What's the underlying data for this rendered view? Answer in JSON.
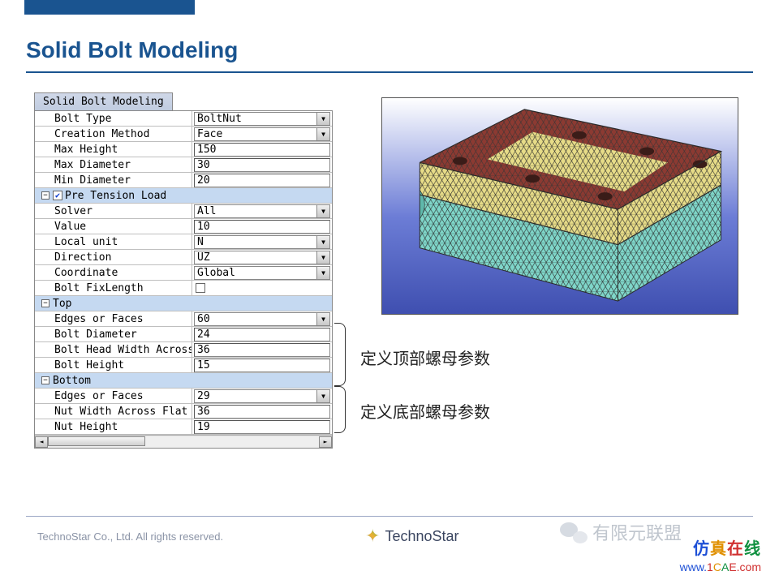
{
  "accent_color": "#1a5490",
  "page_title": "Solid Bolt Modeling",
  "panel_tab": "Solid Bolt Modeling",
  "rows": [
    {
      "label": "Bolt Type",
      "value": "BoltNut",
      "type": "dropdown"
    },
    {
      "label": "Creation Method",
      "value": "Face",
      "type": "dropdown"
    },
    {
      "label": "Max Height",
      "value": "150",
      "type": "text"
    },
    {
      "label": "Max Diameter",
      "value": "30",
      "type": "text"
    },
    {
      "label": "Min Diameter",
      "value": "20",
      "type": "text"
    }
  ],
  "pretension_label": "Pre Tension Load",
  "pretension_checked": true,
  "pretension_rows": [
    {
      "label": "Solver",
      "value": "All",
      "type": "dropdown"
    },
    {
      "label": "Value",
      "value": "10",
      "type": "text"
    },
    {
      "label": "Local unit",
      "value": "N",
      "type": "dropdown"
    },
    {
      "label": "Direction",
      "value": "UZ",
      "type": "dropdown"
    },
    {
      "label": "Coordinate",
      "value": "Global",
      "type": "dropdown"
    },
    {
      "label": "Bolt FixLength",
      "value": "",
      "type": "check"
    }
  ],
  "top_section_label": "Top",
  "top_rows": [
    {
      "label": "Edges or Faces",
      "value": "60",
      "type": "dropdown"
    },
    {
      "label": "Bolt Diameter",
      "value": "24",
      "type": "text"
    },
    {
      "label": "Bolt Head Width Across F…",
      "value": "36",
      "type": "text"
    },
    {
      "label": "Bolt Height",
      "value": "15",
      "type": "text"
    }
  ],
  "bottom_section_label": "Bottom",
  "bottom_rows": [
    {
      "label": "Edges or Faces",
      "value": "29",
      "type": "dropdown"
    },
    {
      "label": "Nut Width Across Flat",
      "value": "36",
      "type": "text"
    },
    {
      "label": "Nut Height",
      "value": "19",
      "type": "text"
    }
  ],
  "annotation_top": "定义顶部螺母参数",
  "annotation_bottom": "定义底部螺母参数",
  "mesh_colors": {
    "top_face": "#8c3a32",
    "upper_side": "#e7dc88",
    "lower_side": "#7fd6c9",
    "edge": "#2a2a2a"
  },
  "copyright": "TechnoStar Co., Ltd. All rights reserved.",
  "logo_text": "TechnoStar",
  "wechat_text": "有限元联盟",
  "brand_cn": "仿真在线",
  "brand_url": "www.1CAE.com"
}
